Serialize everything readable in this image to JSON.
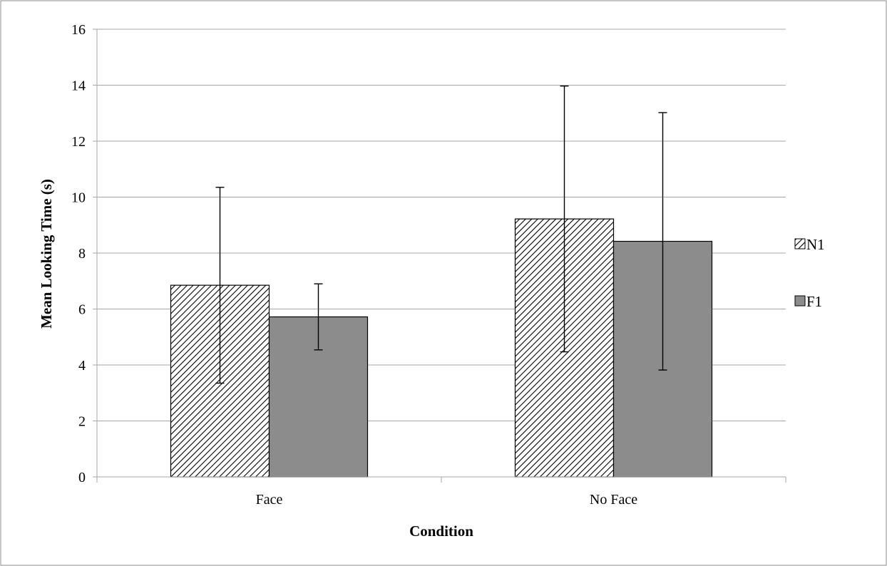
{
  "chart_data": {
    "type": "bar",
    "categories": [
      "Face",
      "No Face"
    ],
    "series": [
      {
        "name": "N1",
        "values": [
          6.85,
          9.22
        ],
        "error_low": [
          3.35,
          4.47
        ],
        "error_high": [
          10.35,
          13.97
        ]
      },
      {
        "name": "F1",
        "values": [
          5.72,
          8.42
        ],
        "error_low": [
          4.54,
          3.82
        ],
        "error_high": [
          6.9,
          13.02
        ]
      }
    ],
    "xlabel": "Condition",
    "ylabel": "Mean Looking Time  (s)",
    "ylim": [
      0,
      16
    ],
    "yticks": [
      0,
      2,
      4,
      6,
      8,
      10,
      12,
      14,
      16
    ],
    "grid": true,
    "legend": "right",
    "colors": {
      "N1": "#ffffff",
      "F1": "#8c8c8c",
      "grid": "#a6a6a6",
      "border": "#000000"
    }
  }
}
